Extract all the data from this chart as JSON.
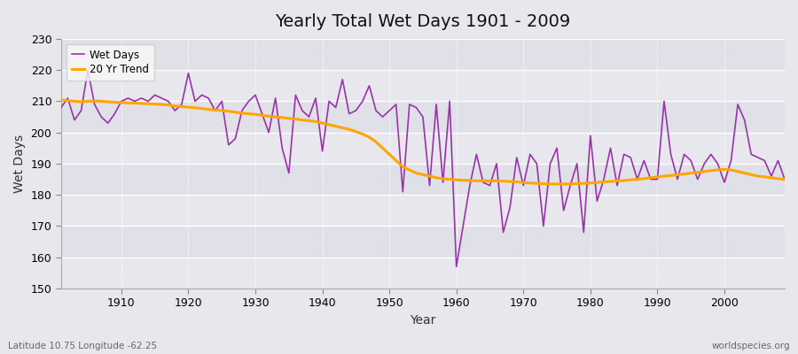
{
  "title": "Yearly Total Wet Days 1901 - 2009",
  "xlabel": "Year",
  "ylabel": "Wet Days",
  "subtitle_left": "Latitude 10.75 Longitude -62.25",
  "subtitle_right": "worldspecies.org",
  "ylim": [
    150,
    230
  ],
  "yticks": [
    150,
    160,
    170,
    180,
    190,
    200,
    210,
    220,
    230
  ],
  "xticks": [
    1910,
    1920,
    1930,
    1940,
    1950,
    1960,
    1970,
    1980,
    1990,
    2000
  ],
  "xlim": [
    1901,
    2009
  ],
  "line_color": "#9933AA",
  "trend_color": "#FFA500",
  "bg_color": "#E8E8EC",
  "plot_bg_color": "#E0E0E8",
  "legend_facecolor": "#F8F8F8",
  "legend_entries": [
    "Wet Days",
    "20 Yr Trend"
  ],
  "years": [
    1901,
    1902,
    1903,
    1904,
    1905,
    1906,
    1907,
    1908,
    1909,
    1910,
    1911,
    1912,
    1913,
    1914,
    1915,
    1916,
    1917,
    1918,
    1919,
    1920,
    1921,
    1922,
    1923,
    1924,
    1925,
    1926,
    1927,
    1928,
    1929,
    1930,
    1931,
    1932,
    1933,
    1934,
    1935,
    1936,
    1937,
    1938,
    1939,
    1940,
    1941,
    1942,
    1943,
    1944,
    1945,
    1946,
    1947,
    1948,
    1949,
    1950,
    1951,
    1952,
    1953,
    1954,
    1955,
    1956,
    1957,
    1958,
    1959,
    1960,
    1961,
    1962,
    1963,
    1964,
    1965,
    1966,
    1967,
    1968,
    1969,
    1970,
    1971,
    1972,
    1973,
    1974,
    1975,
    1976,
    1977,
    1978,
    1979,
    1980,
    1981,
    1982,
    1983,
    1984,
    1985,
    1986,
    1987,
    1988,
    1989,
    1990,
    1991,
    1992,
    1993,
    1994,
    1995,
    1996,
    1997,
    1998,
    1999,
    2000,
    2001,
    2002,
    2003,
    2004,
    2005,
    2006,
    2007,
    2008,
    2009
  ],
  "wet_days": [
    208,
    211,
    204,
    207,
    220,
    209,
    205,
    203,
    206,
    210,
    211,
    210,
    211,
    210,
    212,
    211,
    210,
    207,
    209,
    219,
    210,
    212,
    211,
    207,
    210,
    196,
    198,
    207,
    210,
    212,
    206,
    200,
    211,
    195,
    187,
    212,
    207,
    205,
    211,
    194,
    210,
    208,
    217,
    206,
    207,
    210,
    215,
    207,
    205,
    207,
    209,
    181,
    209,
    208,
    205,
    183,
    209,
    184,
    210,
    157,
    170,
    183,
    193,
    184,
    183,
    190,
    168,
    176,
    192,
    183,
    193,
    190,
    170,
    190,
    195,
    175,
    183,
    190,
    168,
    199,
    178,
    185,
    195,
    183,
    193,
    192,
    185,
    191,
    185,
    185,
    210,
    193,
    185,
    193,
    191,
    185,
    190,
    193,
    190,
    184,
    191,
    209,
    204,
    193,
    192,
    191,
    186,
    191,
    185
  ],
  "trend_start_year": 1901,
  "trend_values": [
    210.5,
    210.2,
    210.0,
    209.8,
    210.0,
    210.1,
    210.0,
    209.8,
    209.7,
    209.6,
    209.5,
    209.4,
    209.3,
    209.2,
    209.1,
    209.0,
    208.8,
    208.5,
    208.3,
    208.1,
    207.9,
    207.7,
    207.4,
    207.2,
    207.0,
    206.8,
    206.5,
    206.2,
    206.0,
    205.8,
    205.5,
    205.2,
    205.0,
    204.8,
    204.5,
    204.3,
    204.0,
    203.8,
    203.5,
    203.0,
    202.5,
    202.0,
    201.5,
    201.0,
    200.3,
    199.5,
    198.5,
    197.0,
    195.0,
    193.0,
    191.0,
    189.0,
    188.0,
    187.0,
    186.5,
    186.0,
    185.5,
    185.2,
    185.0,
    184.8,
    184.7,
    184.6,
    184.5,
    184.5,
    184.5,
    184.5,
    184.4,
    184.3,
    184.2,
    184.0,
    183.8,
    183.7,
    183.6,
    183.5,
    183.5,
    183.5,
    183.5,
    183.6,
    183.7,
    183.8,
    184.0,
    184.2,
    184.3,
    184.5,
    184.6,
    184.8,
    185.0,
    185.2,
    185.5,
    185.8,
    186.0,
    186.2,
    186.5,
    186.7,
    187.0,
    187.2,
    187.5,
    187.8,
    188.0,
    188.2,
    188.0,
    187.5,
    187.0,
    186.5,
    186.0,
    185.8,
    185.5,
    185.2,
    185.0
  ]
}
